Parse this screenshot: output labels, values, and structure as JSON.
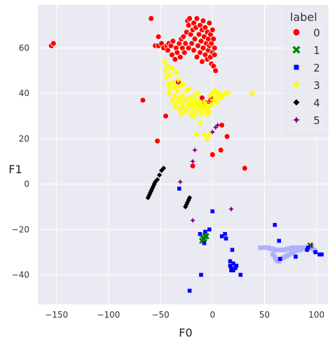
{
  "chart_data": {
    "type": "scatter",
    "title": "",
    "xlabel": "F0",
    "ylabel": "F1",
    "xlim": [
      -168,
      111
    ],
    "ylim": [
      -53,
      79
    ],
    "xticks": [
      -150,
      -100,
      -50,
      0,
      50,
      100
    ],
    "yticks": [
      -40,
      -20,
      0,
      20,
      40,
      60
    ],
    "xtick_labels": [
      "−150",
      "−100",
      "−50",
      "0",
      "50",
      "100"
    ],
    "ytick_labels": [
      "−40",
      "−20",
      "0",
      "20",
      "40",
      "60"
    ],
    "grid": true,
    "legend": {
      "title": "label",
      "position": "top-right",
      "entries": [
        "0",
        "1",
        "2",
        "3",
        "4",
        "5"
      ]
    },
    "series": [
      {
        "name": "0",
        "color": "#ff0000",
        "marker": "circle",
        "points": [
          [
            -155,
            61
          ],
          [
            -153,
            62
          ],
          [
            -67,
            37
          ],
          [
            -59,
            73
          ],
          [
            -55,
            61
          ],
          [
            -53,
            19
          ],
          [
            -52,
            65
          ],
          [
            -52,
            61
          ],
          [
            -49,
            62
          ],
          [
            -47,
            60
          ],
          [
            -45,
            30
          ],
          [
            -44,
            61
          ],
          [
            -43,
            59
          ],
          [
            -42,
            62
          ],
          [
            -40,
            61
          ],
          [
            -39,
            57
          ],
          [
            -38,
            63
          ],
          [
            -36,
            55
          ],
          [
            -35,
            60
          ],
          [
            -34,
            58
          ],
          [
            -32,
            62
          ],
          [
            -31,
            56
          ],
          [
            -30,
            64
          ],
          [
            -29,
            60
          ],
          [
            -28,
            65
          ],
          [
            -27,
            58
          ],
          [
            -26,
            62
          ],
          [
            -25,
            67
          ],
          [
            -24,
            72
          ],
          [
            -23,
            70
          ],
          [
            -23,
            60
          ],
          [
            -22,
            73
          ],
          [
            -21,
            66
          ],
          [
            -20,
            62
          ],
          [
            -19,
            68
          ],
          [
            -18,
            71
          ],
          [
            -18,
            59
          ],
          [
            -17,
            64
          ],
          [
            -16,
            69
          ],
          [
            -15,
            73
          ],
          [
            -15,
            56
          ],
          [
            -14,
            61
          ],
          [
            -13,
            66
          ],
          [
            -12,
            70
          ],
          [
            -12,
            58
          ],
          [
            -11,
            63
          ],
          [
            -10,
            68
          ],
          [
            -10,
            54
          ],
          [
            -9,
            72
          ],
          [
            -9,
            60
          ],
          [
            -8,
            65
          ],
          [
            -7,
            57
          ],
          [
            -7,
            69
          ],
          [
            -6,
            62
          ],
          [
            -5,
            67
          ],
          [
            -5,
            55
          ],
          [
            -4,
            64
          ],
          [
            -4,
            59
          ],
          [
            -3,
            71
          ],
          [
            -3,
            61
          ],
          [
            -2,
            66
          ],
          [
            -2,
            56
          ],
          [
            -1,
            62
          ],
          [
            -1,
            53
          ],
          [
            0,
            68
          ],
          [
            0,
            58
          ],
          [
            1,
            64
          ],
          [
            1,
            52
          ],
          [
            2,
            60
          ],
          [
            2,
            57
          ],
          [
            3,
            50
          ],
          [
            -10,
            38
          ],
          [
            -8,
            36
          ],
          [
            -6,
            35
          ],
          [
            -4,
            36
          ],
          [
            -2,
            37
          ],
          [
            -1,
            38
          ],
          [
            9,
            26
          ],
          [
            8,
            15
          ],
          [
            14,
            21
          ],
          [
            0,
            13
          ],
          [
            -19,
            8
          ],
          [
            31,
            7
          ],
          [
            -33,
            45
          ]
        ]
      },
      {
        "name": "1",
        "color": "#008000",
        "marker": "x",
        "points": [
          [
            -10,
            -25
          ],
          [
            -9,
            -24
          ],
          [
            -8,
            -24
          ],
          [
            -7,
            -23
          ],
          [
            -6,
            -23
          ],
          [
            94,
            -27
          ]
        ]
      },
      {
        "name": "2",
        "color": "#0000ff",
        "marker": "square",
        "points": [
          [
            -32,
            -2
          ],
          [
            -22,
            -47
          ],
          [
            -12,
            -22
          ],
          [
            -11,
            -40
          ],
          [
            -8,
            -26
          ],
          [
            -7,
            -21
          ],
          [
            -3,
            -20
          ],
          [
            0,
            -12
          ],
          [
            9,
            -23
          ],
          [
            12,
            -22
          ],
          [
            13,
            -24
          ],
          [
            17,
            -34
          ],
          [
            17,
            -36
          ],
          [
            18,
            -37
          ],
          [
            18,
            -38
          ],
          [
            19,
            -29
          ],
          [
            20,
            -35
          ],
          [
            20,
            -38
          ],
          [
            22,
            -37
          ],
          [
            23,
            -36
          ],
          [
            27,
            -40
          ],
          [
            60,
            -18
          ],
          [
            64,
            -25
          ],
          [
            65,
            -33
          ],
          [
            80,
            -32
          ],
          [
            91,
            -29
          ],
          [
            92,
            -28
          ],
          [
            99,
            -30
          ],
          [
            103,
            -31
          ],
          [
            105,
            -31
          ]
        ]
      },
      {
        "name": "3",
        "color": "#ffff00",
        "marker": "plus",
        "points": [
          [
            -46,
            54
          ],
          [
            -45,
            50
          ],
          [
            -44,
            47
          ],
          [
            -43,
            52
          ],
          [
            -42,
            44
          ],
          [
            -42,
            40
          ],
          [
            -41,
            48
          ],
          [
            -40,
            42
          ],
          [
            -39,
            37
          ],
          [
            -39,
            51
          ],
          [
            -38,
            45
          ],
          [
            -37,
            39
          ],
          [
            -36,
            43
          ],
          [
            -36,
            34
          ],
          [
            -35,
            49
          ],
          [
            -34,
            36
          ],
          [
            -34,
            41
          ],
          [
            -33,
            46
          ],
          [
            -32,
            33
          ],
          [
            -32,
            38
          ],
          [
            -31,
            43
          ],
          [
            -30,
            36
          ],
          [
            -30,
            31
          ],
          [
            -29,
            39
          ],
          [
            -28,
            34
          ],
          [
            -28,
            44
          ],
          [
            -27,
            32
          ],
          [
            -26,
            37
          ],
          [
            -25,
            41
          ],
          [
            -24,
            33
          ],
          [
            -23,
            35
          ],
          [
            -22,
            38
          ],
          [
            -22,
            42
          ],
          [
            -21,
            31
          ],
          [
            -20,
            36
          ],
          [
            -19,
            34
          ],
          [
            -18,
            39
          ],
          [
            -17,
            32
          ],
          [
            -16,
            37
          ],
          [
            -15,
            35
          ],
          [
            -14,
            40
          ],
          [
            -13,
            33
          ],
          [
            -12,
            36
          ],
          [
            -11,
            31
          ],
          [
            -10,
            34
          ],
          [
            -9,
            32
          ],
          [
            -8,
            36
          ],
          [
            -7,
            33
          ],
          [
            -6,
            35
          ],
          [
            -5,
            31
          ],
          [
            -4,
            34
          ],
          [
            -3,
            32
          ],
          [
            -2,
            39
          ],
          [
            -1,
            35
          ],
          [
            0,
            40
          ],
          [
            1,
            37
          ],
          [
            2,
            41
          ],
          [
            3,
            38
          ],
          [
            4,
            36
          ],
          [
            5,
            39
          ],
          [
            6,
            40
          ],
          [
            8,
            38
          ],
          [
            10,
            39
          ],
          [
            12,
            40
          ],
          [
            15,
            40
          ],
          [
            38,
            40
          ],
          [
            -15,
            22
          ],
          [
            -8,
            22
          ],
          [
            -5,
            20
          ],
          [
            -3,
            22
          ],
          [
            -18,
            30
          ],
          [
            -12,
            27
          ]
        ]
      },
      {
        "name": "4",
        "color": "#000000",
        "marker": "diamond",
        "points": [
          [
            -62,
            -6
          ],
          [
            -61,
            -5
          ],
          [
            -60,
            -4
          ],
          [
            -59,
            -3
          ],
          [
            -58,
            -2
          ],
          [
            -57,
            -1
          ],
          [
            -56,
            0
          ],
          [
            -55,
            1
          ],
          [
            -53,
            2
          ],
          [
            -51,
            4
          ],
          [
            -49,
            6
          ],
          [
            -47,
            7
          ],
          [
            -26,
            -10
          ],
          [
            -25,
            -9
          ],
          [
            -24,
            -8
          ],
          [
            -23,
            -7
          ],
          [
            -22,
            -6
          ]
        ]
      },
      {
        "name": "5",
        "color": "#800080",
        "marker": "star",
        "points": [
          [
            -19,
            10
          ],
          [
            -17,
            15
          ],
          [
            -31,
            1
          ],
          [
            -19,
            -16
          ],
          [
            0,
            23
          ],
          [
            3,
            25
          ],
          [
            5,
            26
          ],
          [
            18,
            -11
          ],
          [
            95,
            -27
          ]
        ]
      }
    ],
    "band": {
      "series": "2",
      "color": "#b0b0ff",
      "marker": "square",
      "points": [
        [
          46,
          -28
        ],
        [
          48,
          -28
        ],
        [
          50,
          -28
        ],
        [
          52,
          -28
        ],
        [
          54,
          -28
        ],
        [
          56,
          -28.5
        ],
        [
          58,
          -28.5
        ],
        [
          60,
          -29
        ],
        [
          62,
          -29
        ],
        [
          64,
          -29
        ],
        [
          66,
          -29
        ],
        [
          68,
          -29
        ],
        [
          70,
          -29
        ],
        [
          72,
          -28.5
        ],
        [
          74,
          -28.5
        ],
        [
          76,
          -28
        ],
        [
          78,
          -28
        ],
        [
          80,
          -28
        ],
        [
          82,
          -28
        ],
        [
          84,
          -28
        ],
        [
          86,
          -28
        ],
        [
          88,
          -28
        ],
        [
          90,
          -28
        ],
        [
          92,
          -28
        ],
        [
          94,
          -28
        ],
        [
          96,
          -28.5
        ],
        [
          98,
          -29
        ],
        [
          58,
          -31
        ],
        [
          60,
          -32
        ],
        [
          61,
          -33
        ],
        [
          62,
          -33.5
        ],
        [
          63,
          -34
        ],
        [
          64,
          -34
        ],
        [
          66,
          -33
        ],
        [
          68,
          -32.5
        ],
        [
          70,
          -32
        ],
        [
          72,
          -31.5
        ],
        [
          74,
          -31
        ],
        [
          76,
          -30.5
        ],
        [
          78,
          -30
        ],
        [
          80,
          -29.5
        ],
        [
          82,
          -29
        ],
        [
          84,
          -29
        ],
        [
          86,
          -28.5
        ],
        [
          88,
          -28.5
        ],
        [
          90,
          -28
        ],
        [
          92,
          -28
        ]
      ]
    }
  }
}
